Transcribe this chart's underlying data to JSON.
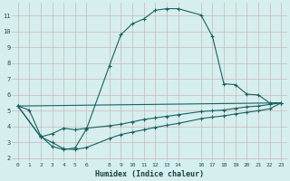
{
  "xlabel": "Humidex (Indice chaleur)",
  "bg_color": "#d6eeee",
  "grid_color": "#c8b8b8",
  "line_color": "#1a6060",
  "xlim": [
    -0.5,
    23.5
  ],
  "ylim": [
    1.8,
    11.8
  ],
  "xticks": [
    0,
    1,
    2,
    3,
    4,
    5,
    6,
    8,
    9,
    10,
    11,
    12,
    13,
    14,
    16,
    17,
    18,
    19,
    20,
    21,
    22,
    23
  ],
  "yticks": [
    2,
    3,
    4,
    5,
    6,
    7,
    8,
    9,
    10,
    11
  ],
  "line1_x": [
    0,
    1,
    2,
    3,
    4,
    5,
    6,
    8,
    9,
    10,
    11,
    12,
    13,
    14,
    16,
    17,
    18,
    19,
    20,
    21,
    22,
    23
  ],
  "line1_y": [
    5.3,
    5.05,
    3.4,
    2.75,
    2.55,
    2.65,
    3.85,
    7.85,
    9.8,
    10.5,
    10.8,
    11.35,
    11.45,
    11.45,
    11.05,
    9.7,
    6.7,
    6.65,
    6.05,
    6.0,
    5.5,
    5.5
  ],
  "line2_x": [
    0,
    2,
    3,
    4,
    5,
    6,
    8,
    9,
    10,
    11,
    12,
    13,
    14,
    16,
    17,
    18,
    19,
    20,
    21,
    22,
    23
  ],
  "line2_y": [
    5.3,
    3.35,
    3.55,
    3.9,
    3.8,
    3.9,
    4.05,
    4.15,
    4.3,
    4.45,
    4.55,
    4.65,
    4.75,
    4.95,
    5.0,
    5.05,
    5.15,
    5.25,
    5.3,
    5.4,
    5.5
  ],
  "line3_x": [
    0,
    2,
    3,
    4,
    5,
    6,
    8,
    9,
    10,
    11,
    12,
    13,
    14,
    16,
    17,
    18,
    19,
    20,
    21,
    22,
    23
  ],
  "line3_y": [
    5.3,
    3.35,
    3.0,
    2.6,
    2.55,
    2.68,
    3.25,
    3.5,
    3.65,
    3.8,
    3.95,
    4.08,
    4.2,
    4.5,
    4.6,
    4.68,
    4.8,
    4.9,
    5.0,
    5.12,
    5.5
  ],
  "line4_x": [
    0,
    23
  ],
  "line4_y": [
    5.3,
    5.5
  ]
}
